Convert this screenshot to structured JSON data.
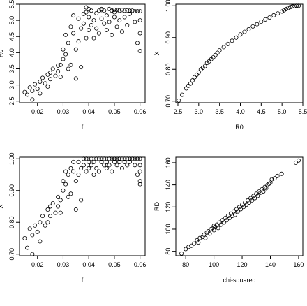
{
  "chart_data": [
    {
      "type": "scatter",
      "title": "",
      "xlabel": "f",
      "ylabel": "R0",
      "xlim": [
        0.013,
        0.062
      ],
      "ylim": [
        2.45,
        5.5
      ],
      "xticks": [
        0.02,
        0.03,
        0.04,
        0.05,
        0.06
      ],
      "xtick_labels": [
        "0.02",
        "0.03",
        "0.04",
        "0.05",
        "0.06"
      ],
      "yticks": [
        2.5,
        3.0,
        3.5,
        4.0,
        4.5,
        5.0,
        5.5
      ],
      "ytick_labels": [
        "2.5",
        "3.0",
        "3.5",
        "4.0",
        "4.5",
        "5.0",
        "5.5"
      ],
      "grid": false,
      "points": [
        [
          0.015,
          2.78
        ],
        [
          0.016,
          2.7
        ],
        [
          0.017,
          2.92
        ],
        [
          0.018,
          2.82
        ],
        [
          0.018,
          2.55
        ],
        [
          0.019,
          3.02
        ],
        [
          0.02,
          2.88
        ],
        [
          0.021,
          3.1
        ],
        [
          0.021,
          2.74
        ],
        [
          0.022,
          3.22
        ],
        [
          0.023,
          3.05
        ],
        [
          0.024,
          3.32
        ],
        [
          0.024,
          2.95
        ],
        [
          0.025,
          3.38
        ],
        [
          0.025,
          3.18
        ],
        [
          0.026,
          3.5
        ],
        [
          0.027,
          3.28
        ],
        [
          0.028,
          3.42
        ],
        [
          0.028,
          3.6
        ],
        [
          0.029,
          3.62
        ],
        [
          0.029,
          3.25
        ],
        [
          0.03,
          3.8
        ],
        [
          0.03,
          4.1
        ],
        [
          0.031,
          3.95
        ],
        [
          0.031,
          4.55
        ],
        [
          0.032,
          3.5
        ],
        [
          0.032,
          4.3
        ],
        [
          0.033,
          4.8
        ],
        [
          0.033,
          3.62
        ],
        [
          0.034,
          4.6
        ],
        [
          0.034,
          5.15
        ],
        [
          0.035,
          4.1
        ],
        [
          0.035,
          3.2
        ],
        [
          0.036,
          4.35
        ],
        [
          0.036,
          5.05
        ],
        [
          0.037,
          4.75
        ],
        [
          0.037,
          3.55
        ],
        [
          0.038,
          4.9
        ],
        [
          0.038,
          5.2
        ],
        [
          0.039,
          4.45
        ],
        [
          0.039,
          5.25
        ],
        [
          0.04,
          4.7
        ],
        [
          0.04,
          5.1
        ],
        [
          0.041,
          4.85
        ],
        [
          0.041,
          5.3
        ],
        [
          0.042,
          5.0
        ],
        [
          0.042,
          4.45
        ],
        [
          0.043,
          5.22
        ],
        [
          0.043,
          4.75
        ],
        [
          0.044,
          5.3
        ],
        [
          0.044,
          4.6
        ],
        [
          0.045,
          5.05
        ],
        [
          0.045,
          5.35
        ],
        [
          0.046,
          4.9
        ],
        [
          0.046,
          5.3
        ],
        [
          0.047,
          5.15
        ],
        [
          0.047,
          4.7
        ],
        [
          0.048,
          5.35
        ],
        [
          0.048,
          4.95
        ],
        [
          0.049,
          5.3
        ],
        [
          0.049,
          4.55
        ],
        [
          0.05,
          5.1
        ],
        [
          0.05,
          5.33
        ],
        [
          0.051,
          5.32
        ],
        [
          0.051,
          4.8
        ],
        [
          0.052,
          5.3
        ],
        [
          0.052,
          5.0
        ],
        [
          0.053,
          5.32
        ],
        [
          0.053,
          4.65
        ],
        [
          0.054,
          5.3
        ],
        [
          0.054,
          5.1
        ],
        [
          0.055,
          5.31
        ],
        [
          0.055,
          4.85
        ],
        [
          0.056,
          5.3
        ],
        [
          0.056,
          5.2
        ],
        [
          0.057,
          5.3
        ],
        [
          0.058,
          5.28
        ],
        [
          0.058,
          4.95
        ],
        [
          0.059,
          5.28
        ],
        [
          0.059,
          4.3
        ],
        [
          0.06,
          5.28
        ],
        [
          0.06,
          4.05
        ],
        [
          0.06,
          4.6
        ],
        [
          0.06,
          5.0
        ],
        [
          0.039,
          5.4
        ],
        [
          0.04,
          5.35
        ],
        [
          0.045,
          5.32
        ],
        [
          0.05,
          5.25
        ]
      ]
    },
    {
      "type": "scatter",
      "title": "",
      "xlabel": "R0",
      "ylabel": "X",
      "xlim": [
        2.45,
        5.5
      ],
      "ylim": [
        0.695,
        1.005
      ],
      "xticks": [
        2.5,
        3.0,
        3.5,
        4.0,
        4.5,
        5.0,
        5.5
      ],
      "xtick_labels": [
        "2.5",
        "3.0",
        "3.5",
        "4.0",
        "4.5",
        "5.0",
        "5.5"
      ],
      "yticks": [
        0.7,
        0.8,
        0.9,
        1.0
      ],
      "ytick_labels": [
        "0.70",
        "0.80",
        "0.90",
        "1.00"
      ],
      "grid": false,
      "points": [
        [
          2.52,
          0.702
        ],
        [
          2.6,
          0.72
        ],
        [
          2.7,
          0.74
        ],
        [
          2.75,
          0.748
        ],
        [
          2.8,
          0.755
        ],
        [
          2.85,
          0.765
        ],
        [
          2.9,
          0.775
        ],
        [
          2.95,
          0.783
        ],
        [
          3.0,
          0.79
        ],
        [
          3.05,
          0.8
        ],
        [
          3.1,
          0.805
        ],
        [
          3.15,
          0.81
        ],
        [
          3.2,
          0.82
        ],
        [
          3.25,
          0.825
        ],
        [
          3.3,
          0.832
        ],
        [
          3.35,
          0.838
        ],
        [
          3.4,
          0.845
        ],
        [
          3.45,
          0.852
        ],
        [
          3.5,
          0.86
        ],
        [
          3.6,
          0.87
        ],
        [
          3.7,
          0.88
        ],
        [
          3.8,
          0.89
        ],
        [
          3.9,
          0.9
        ],
        [
          4.0,
          0.91
        ],
        [
          4.1,
          0.918
        ],
        [
          4.2,
          0.926
        ],
        [
          4.3,
          0.935
        ],
        [
          4.4,
          0.942
        ],
        [
          4.5,
          0.95
        ],
        [
          4.6,
          0.957
        ],
        [
          4.7,
          0.963
        ],
        [
          4.8,
          0.97
        ],
        [
          4.9,
          0.976
        ],
        [
          5.0,
          0.982
        ],
        [
          5.05,
          0.986
        ],
        [
          5.1,
          0.99
        ],
        [
          5.15,
          0.993
        ],
        [
          5.2,
          0.996
        ],
        [
          5.25,
          0.998
        ],
        [
          5.3,
          0.999
        ],
        [
          5.35,
          1.0
        ],
        [
          5.4,
          1.0
        ]
      ]
    },
    {
      "type": "scatter",
      "title": "",
      "xlabel": "f",
      "ylabel": "X",
      "xlim": [
        0.013,
        0.062
      ],
      "ylim": [
        0.695,
        1.005
      ],
      "xticks": [
        0.02,
        0.03,
        0.04,
        0.05,
        0.06
      ],
      "xtick_labels": [
        "0.02",
        "0.03",
        "0.04",
        "0.05",
        "0.06"
      ],
      "yticks": [
        0.7,
        0.8,
        0.9,
        1.0
      ],
      "ytick_labels": [
        "0.70",
        "0.80",
        "0.90",
        "1.00"
      ],
      "grid": false,
      "points": [
        [
          0.015,
          0.75
        ],
        [
          0.016,
          0.72
        ],
        [
          0.017,
          0.78
        ],
        [
          0.018,
          0.76
        ],
        [
          0.018,
          0.7
        ],
        [
          0.019,
          0.79
        ],
        [
          0.02,
          0.77
        ],
        [
          0.021,
          0.8
        ],
        [
          0.021,
          0.74
        ],
        [
          0.022,
          0.82
        ],
        [
          0.023,
          0.79
        ],
        [
          0.024,
          0.84
        ],
        [
          0.024,
          0.8
        ],
        [
          0.025,
          0.85
        ],
        [
          0.025,
          0.82
        ],
        [
          0.026,
          0.86
        ],
        [
          0.027,
          0.83
        ],
        [
          0.028,
          0.85
        ],
        [
          0.028,
          0.88
        ],
        [
          0.029,
          0.87
        ],
        [
          0.029,
          0.83
        ],
        [
          0.03,
          0.9
        ],
        [
          0.03,
          0.93
        ],
        [
          0.031,
          0.92
        ],
        [
          0.031,
          0.96
        ],
        [
          0.032,
          0.88
        ],
        [
          0.032,
          0.95
        ],
        [
          0.033,
          0.97
        ],
        [
          0.033,
          0.89
        ],
        [
          0.034,
          0.96
        ],
        [
          0.034,
          0.99
        ],
        [
          0.035,
          0.93
        ],
        [
          0.035,
          0.84
        ],
        [
          0.036,
          0.95
        ],
        [
          0.036,
          0.99
        ],
        [
          0.037,
          0.97
        ],
        [
          0.037,
          0.87
        ],
        [
          0.038,
          0.98
        ],
        [
          0.038,
          1.0
        ],
        [
          0.039,
          0.96
        ],
        [
          0.039,
          1.0
        ],
        [
          0.04,
          0.97
        ],
        [
          0.04,
          0.99
        ],
        [
          0.041,
          0.98
        ],
        [
          0.041,
          1.0
        ],
        [
          0.042,
          0.99
        ],
        [
          0.042,
          0.95
        ],
        [
          0.043,
          1.0
        ],
        [
          0.043,
          0.97
        ],
        [
          0.044,
          1.0
        ],
        [
          0.044,
          0.96
        ],
        [
          0.045,
          0.99
        ],
        [
          0.045,
          1.0
        ],
        [
          0.046,
          0.98
        ],
        [
          0.046,
          1.0
        ],
        [
          0.047,
          0.99
        ],
        [
          0.047,
          0.97
        ],
        [
          0.048,
          1.0
        ],
        [
          0.048,
          0.98
        ],
        [
          0.049,
          1.0
        ],
        [
          0.049,
          0.96
        ],
        [
          0.05,
          0.99
        ],
        [
          0.05,
          1.0
        ],
        [
          0.051,
          1.0
        ],
        [
          0.051,
          0.98
        ],
        [
          0.052,
          1.0
        ],
        [
          0.052,
          0.99
        ],
        [
          0.053,
          1.0
        ],
        [
          0.053,
          0.97
        ],
        [
          0.054,
          1.0
        ],
        [
          0.054,
          0.99
        ],
        [
          0.055,
          1.0
        ],
        [
          0.055,
          0.98
        ],
        [
          0.056,
          1.0
        ],
        [
          0.056,
          0.99
        ],
        [
          0.057,
          1.0
        ],
        [
          0.058,
          1.0
        ],
        [
          0.058,
          0.98
        ],
        [
          0.059,
          1.0
        ],
        [
          0.059,
          0.95
        ],
        [
          0.06,
          1.0
        ],
        [
          0.06,
          0.93
        ],
        [
          0.06,
          0.96
        ],
        [
          0.06,
          0.98
        ],
        [
          0.06,
          0.92
        ]
      ]
    },
    {
      "type": "scatter",
      "title": "",
      "xlabel": "chi-squared",
      "ylabel": "RD",
      "xlim": [
        73,
        163
      ],
      "ylim": [
        76,
        165
      ],
      "xticks": [
        80,
        100,
        120,
        140,
        160
      ],
      "xtick_labels": [
        "80",
        "100",
        "120",
        "140",
        "160"
      ],
      "yticks": [
        80,
        100,
        120,
        140,
        160
      ],
      "ytick_labels": [
        "80",
        "100",
        "120",
        "140",
        "160"
      ],
      "grid": false,
      "points": [
        [
          77,
          78
        ],
        [
          80,
          82
        ],
        [
          82,
          84
        ],
        [
          84,
          85
        ],
        [
          86,
          87
        ],
        [
          88,
          90
        ],
        [
          89,
          88
        ],
        [
          90,
          92
        ],
        [
          92,
          93
        ],
        [
          93,
          95
        ],
        [
          94,
          92
        ],
        [
          95,
          97
        ],
        [
          96,
          98
        ],
        [
          97,
          96
        ],
        [
          98,
          100
        ],
        [
          99,
          101
        ],
        [
          100,
          99
        ],
        [
          100,
          103
        ],
        [
          101,
          102
        ],
        [
          102,
          104
        ],
        [
          103,
          101
        ],
        [
          104,
          106
        ],
        [
          105,
          104
        ],
        [
          106,
          108
        ],
        [
          107,
          106
        ],
        [
          108,
          110
        ],
        [
          109,
          108
        ],
        [
          110,
          112
        ],
        [
          111,
          110
        ],
        [
          112,
          114
        ],
        [
          113,
          112
        ],
        [
          114,
          116
        ],
        [
          115,
          113
        ],
        [
          116,
          118
        ],
        [
          117,
          116
        ],
        [
          118,
          120
        ],
        [
          119,
          118
        ],
        [
          120,
          122
        ],
        [
          121,
          120
        ],
        [
          122,
          124
        ],
        [
          123,
          122
        ],
        [
          124,
          126
        ],
        [
          125,
          124
        ],
        [
          126,
          128
        ],
        [
          127,
          126
        ],
        [
          128,
          130
        ],
        [
          129,
          128
        ],
        [
          130,
          132
        ],
        [
          131,
          130
        ],
        [
          132,
          134
        ],
        [
          133,
          133
        ],
        [
          134,
          136
        ],
        [
          135,
          134
        ],
        [
          136,
          138
        ],
        [
          137,
          137
        ],
        [
          138,
          140
        ],
        [
          139,
          141
        ],
        [
          140,
          142
        ],
        [
          141,
          145
        ],
        [
          143,
          146
        ],
        [
          145,
          148
        ],
        [
          148,
          150
        ],
        [
          158,
          160
        ],
        [
          160,
          162
        ]
      ]
    }
  ]
}
